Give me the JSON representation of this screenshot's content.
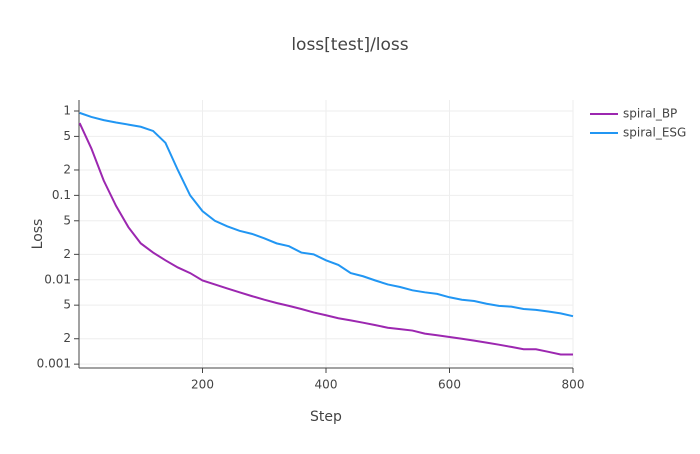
{
  "chart_data": {
    "type": "line",
    "title": "loss[test]/loss",
    "x_label": "Step",
    "y_label": "Loss",
    "x": [
      1,
      20,
      40,
      60,
      80,
      100,
      120,
      140,
      160,
      180,
      200,
      220,
      240,
      260,
      280,
      300,
      320,
      340,
      360,
      380,
      400,
      420,
      440,
      460,
      480,
      500,
      520,
      540,
      560,
      580,
      600,
      620,
      640,
      660,
      680,
      700,
      720,
      740,
      760,
      780,
      800
    ],
    "series": [
      {
        "name": "spiral_BP",
        "color": "#9c27b0",
        "values": [
          0.72,
          0.36,
          0.15,
          0.075,
          0.042,
          0.027,
          0.021,
          0.017,
          0.014,
          0.012,
          0.0098,
          0.0088,
          0.0079,
          0.0071,
          0.0064,
          0.0058,
          0.0053,
          0.0049,
          0.0045,
          0.0041,
          0.0038,
          0.0035,
          0.0033,
          0.0031,
          0.0029,
          0.0027,
          0.0026,
          0.0025,
          0.0023,
          0.0022,
          0.0021,
          0.002,
          0.0019,
          0.0018,
          0.0017,
          0.0016,
          0.0015,
          0.0015,
          0.0014,
          0.0013,
          0.0013
        ]
      },
      {
        "name": "spiral_ESG",
        "color": "#2196f3",
        "values": [
          0.95,
          0.85,
          0.78,
          0.73,
          0.69,
          0.65,
          0.58,
          0.42,
          0.2,
          0.1,
          0.065,
          0.05,
          0.043,
          0.038,
          0.035,
          0.031,
          0.027,
          0.025,
          0.021,
          0.02,
          0.017,
          0.015,
          0.012,
          0.011,
          0.0098,
          0.0088,
          0.0082,
          0.0075,
          0.0071,
          0.0068,
          0.0062,
          0.0058,
          0.0056,
          0.0052,
          0.0049,
          0.0048,
          0.0045,
          0.0044,
          0.0042,
          0.004,
          0.0037
        ]
      }
    ],
    "xlim": [
      0,
      800
    ],
    "xticks": [
      200,
      400,
      600,
      800
    ],
    "ylim": [
      0.0009,
      1.35
    ],
    "log_y": true,
    "yticks": [
      0.001,
      {
        "value": 0.002,
        "label": "2"
      },
      {
        "value": 0.005,
        "label": "5"
      },
      0.01,
      {
        "value": 0.02,
        "label": "2"
      },
      {
        "value": 0.05,
        "label": "5"
      },
      0.1,
      {
        "value": 0.2,
        "label": "2"
      },
      {
        "value": 0.5,
        "label": "5"
      },
      1
    ],
    "grid": true,
    "legend": "right"
  }
}
